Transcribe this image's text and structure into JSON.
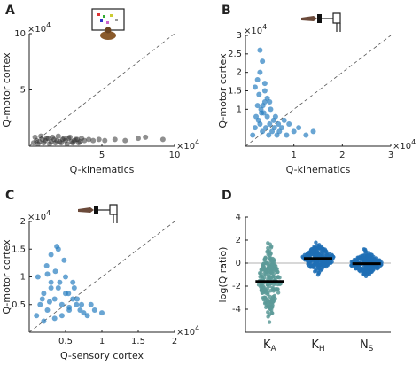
{
  "chart_data": [
    {
      "panel": "A",
      "type": "scatter",
      "xlabel": "Q-kinematics",
      "ylabel": "Q-motor cortex",
      "x_multiplier_label": "×10^4",
      "y_multiplier_label": "×10^4",
      "xlim": [
        0,
        10
      ],
      "ylim": [
        0,
        10
      ],
      "x_tick_labels": [
        "5",
        "10"
      ],
      "y_tick_labels": [
        "5",
        "10"
      ],
      "point_color": "#333333",
      "diagonal": "dashed",
      "icon": "reaching-monkey-screen-icon",
      "points": {
        "x": [
          0.3,
          0.5,
          0.7,
          0.9,
          1.1,
          1.3,
          1.5,
          1.7,
          1.9,
          2.1,
          2.3,
          2.5,
          2.7,
          2.9,
          3.1,
          3.3,
          3.5,
          3.8,
          4.1,
          4.4,
          0.4,
          0.8,
          1.2,
          1.6,
          2.0,
          2.4,
          2.8,
          3.2,
          3.6,
          0.6,
          1.0,
          1.4,
          1.8,
          2.2,
          2.6,
          3.0,
          3.4,
          4.8,
          5.2,
          5.9,
          6.6,
          7.5,
          8.0,
          9.2
        ],
        "y": [
          0.3,
          0.5,
          0.4,
          0.6,
          0.5,
          0.7,
          0.4,
          0.6,
          0.5,
          0.4,
          0.6,
          0.5,
          0.7,
          0.4,
          0.5,
          0.6,
          0.4,
          0.5,
          0.6,
          0.5,
          0.8,
          0.9,
          0.7,
          0.8,
          0.9,
          0.7,
          0.8,
          0.6,
          0.7,
          0.2,
          0.3,
          0.2,
          0.3,
          0.3,
          0.2,
          0.3,
          0.3,
          0.6,
          0.5,
          0.6,
          0.5,
          0.7,
          0.8,
          0.6
        ]
      }
    },
    {
      "panel": "B",
      "type": "scatter",
      "xlabel": "Q-kinematics",
      "ylabel": "Q-motor cortex",
      "x_multiplier_label": "×10^4",
      "y_multiplier_label": "×10^4",
      "xlim": [
        0,
        3
      ],
      "ylim": [
        0,
        3
      ],
      "x_tick_labels": [
        "1",
        "2",
        "3"
      ],
      "y_tick_labels": [
        "1",
        "1.5",
        "2",
        "2.5",
        "3"
      ],
      "point_color": "#2a7fc1",
      "diagonal": "dashed",
      "icon": "hand-on-sensor-icon",
      "points": {
        "x": [
          0.15,
          0.2,
          0.22,
          0.25,
          0.28,
          0.3,
          0.32,
          0.35,
          0.38,
          0.4,
          0.42,
          0.45,
          0.48,
          0.5,
          0.52,
          0.55,
          0.58,
          0.6,
          0.62,
          0.65,
          0.68,
          0.7,
          0.75,
          0.8,
          0.85,
          0.9,
          1.0,
          1.1,
          1.25,
          1.4,
          0.2,
          0.25,
          0.3,
          0.35,
          0.4,
          0.45,
          0.5,
          0.3,
          0.4,
          0.33,
          0.27,
          0.36
        ],
        "y": [
          0.3,
          0.5,
          0.8,
          1.1,
          1.4,
          0.6,
          1.0,
          0.4,
          0.9,
          1.2,
          0.5,
          0.8,
          0.3,
          0.6,
          1.0,
          0.4,
          0.7,
          0.5,
          0.8,
          0.3,
          0.6,
          0.4,
          0.5,
          0.7,
          0.3,
          0.6,
          0.4,
          0.5,
          0.3,
          0.4,
          1.6,
          1.8,
          2.0,
          2.3,
          1.5,
          1.3,
          1.2,
          2.6,
          1.7,
          0.9,
          0.7,
          1.1
        ]
      }
    },
    {
      "panel": "C",
      "type": "scatter",
      "xlabel": "Q-sensory cortex",
      "ylabel": "Q-motor cortex",
      "x_multiplier_label": "×10^4",
      "y_multiplier_label": "×10^4",
      "xlim": [
        0,
        2
      ],
      "ylim": [
        0,
        2
      ],
      "x_tick_labels": [
        "0.5",
        "1",
        "1.5",
        "2"
      ],
      "y_tick_labels": [
        "0.5",
        "1",
        "1.5",
        "2"
      ],
      "point_color": "#2a7fc1",
      "diagonal": "dashed",
      "icon": "hand-on-sensor-icon",
      "points": {
        "x": [
          0.1,
          0.15,
          0.2,
          0.25,
          0.3,
          0.35,
          0.4,
          0.45,
          0.5,
          0.55,
          0.6,
          0.65,
          0.7,
          0.75,
          0.8,
          0.85,
          0.9,
          1.0,
          0.12,
          0.18,
          0.24,
          0.3,
          0.36,
          0.42,
          0.48,
          0.54,
          0.6,
          0.66,
          0.2,
          0.3,
          0.4,
          0.5,
          0.35,
          0.45,
          0.25,
          0.55,
          0.38,
          0.28,
          0.62,
          0.72
        ],
        "y": [
          0.3,
          0.5,
          0.7,
          0.4,
          0.9,
          0.6,
          0.8,
          0.5,
          0.7,
          0.4,
          0.6,
          0.5,
          0.4,
          0.35,
          0.3,
          0.5,
          0.4,
          0.35,
          1.0,
          0.6,
          1.2,
          0.8,
          1.1,
          0.9,
          1.3,
          0.7,
          0.9,
          0.6,
          0.2,
          1.4,
          1.5,
          1.0,
          0.25,
          0.3,
          1.05,
          0.45,
          1.55,
          0.55,
          0.8,
          0.5
        ]
      }
    },
    {
      "panel": "D",
      "type": "scatter",
      "subtype": "violin-swarm",
      "ylabel": "log(Q ratio)",
      "ylim": [
        -6,
        4
      ],
      "y_tick_labels": [
        "4",
        "2",
        "0",
        "-2",
        "-4"
      ],
      "y_ticks": [
        4,
        2,
        0,
        -2,
        -4
      ],
      "categories": [
        "K_A",
        "K_H",
        "N_S"
      ],
      "category_main": [
        "K",
        "K",
        "N"
      ],
      "category_sub": [
        "A",
        "H",
        "S"
      ],
      "colors": [
        "#5c9a98",
        "#1f6fb5",
        "#1f6fb5"
      ],
      "medians": [
        -1.6,
        0.4,
        -0.05
      ],
      "distributions": [
        {
          "min": -5.5,
          "max": 1.8,
          "peak": -1.6,
          "spread": 1.35
        },
        {
          "min": -1.4,
          "max": 2.3,
          "peak": 0.4,
          "spread": 0.55
        },
        {
          "min": -2.0,
          "max": 2.0,
          "peak": -0.05,
          "spread": 0.45
        }
      ],
      "zero_line": true
    }
  ]
}
